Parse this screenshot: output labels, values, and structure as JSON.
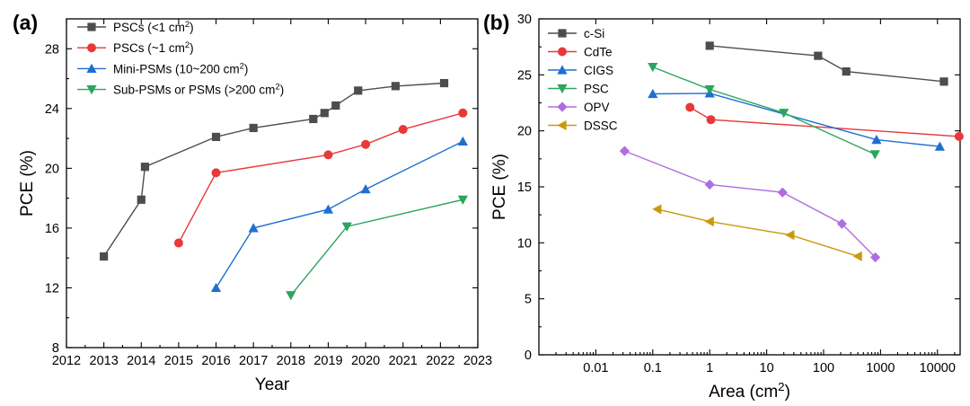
{
  "chart_data": [
    {
      "panel_label": "(a)",
      "type": "line",
      "xlabel": "Year",
      "ylabel": "PCE (%)",
      "xlim": [
        2012,
        2023
      ],
      "ylim": [
        8,
        30
      ],
      "x_ticks": [
        2012,
        2013,
        2014,
        2015,
        2016,
        2017,
        2018,
        2019,
        2020,
        2021,
        2022,
        2023
      ],
      "y_ticks": [
        8,
        12,
        16,
        20,
        24,
        28
      ],
      "legend_position": "top-left",
      "series": [
        {
          "name": "PSCs (<1 cm²)",
          "color": "#4d4d4d",
          "marker": "square",
          "points": [
            [
              2013,
              14.1
            ],
            [
              2014,
              17.9
            ],
            [
              2014.1,
              20.1
            ],
            [
              2016,
              22.1
            ],
            [
              2017,
              22.7
            ],
            [
              2018.6,
              23.3
            ],
            [
              2018.9,
              23.7
            ],
            [
              2019.2,
              24.2
            ],
            [
              2019.8,
              25.2
            ],
            [
              2020.8,
              25.5
            ],
            [
              2022.1,
              25.7
            ]
          ]
        },
        {
          "name": "PSCs (~1 cm²)",
          "color": "#e8393a",
          "marker": "circle",
          "points": [
            [
              2015,
              15.0
            ],
            [
              2016,
              19.7
            ],
            [
              2019,
              20.9
            ],
            [
              2020,
              21.6
            ],
            [
              2021,
              22.6
            ],
            [
              2022.6,
              23.7
            ]
          ]
        },
        {
          "name": "Mini-PSMs (10~200 cm²)",
          "color": "#1f6fd1",
          "marker": "triangle-up",
          "points": [
            [
              2016,
              12.0
            ],
            [
              2017,
              16.0
            ],
            [
              2019,
              17.25
            ],
            [
              2020,
              18.6
            ],
            [
              2022.6,
              21.8
            ]
          ]
        },
        {
          "name": "Sub-PSMs or PSMs (>200 cm²)",
          "color": "#2ca55d",
          "marker": "triangle-down",
          "points": [
            [
              2018,
              11.5
            ],
            [
              2019.5,
              16.1
            ],
            [
              2022.6,
              17.9
            ]
          ]
        }
      ]
    },
    {
      "panel_label": "(b)",
      "type": "line",
      "xlabel": "Area (cm²)",
      "ylabel": "PCE (%)",
      "xscale": "log",
      "xlim": [
        0.001,
        25000
      ],
      "ylim": [
        0,
        30
      ],
      "x_ticks": [
        0.01,
        0.1,
        1,
        10,
        100,
        1000,
        10000
      ],
      "x_tick_labels": [
        "0.01",
        "0.1",
        "1",
        "10",
        "100",
        "1000",
        "10000"
      ],
      "y_ticks": [
        0,
        5,
        10,
        15,
        20,
        25,
        30
      ],
      "legend_position": "top-left",
      "series": [
        {
          "name": "c-Si",
          "color": "#4d4d4d",
          "marker": "square",
          "points": [
            [
              1,
              27.6
            ],
            [
              80,
              26.7
            ],
            [
              250,
              25.3
            ],
            [
              13000,
              24.4
            ]
          ]
        },
        {
          "name": "CdTe",
          "color": "#e8393a",
          "marker": "circle",
          "points": [
            [
              0.45,
              22.1
            ],
            [
              1.05,
              21.0
            ],
            [
              24000,
              19.5
            ]
          ]
        },
        {
          "name": "CIGS",
          "color": "#1f6fd1",
          "marker": "triangle-up",
          "points": [
            [
              0.1,
              23.3
            ],
            [
              1.0,
              23.35
            ],
            [
              850,
              19.2
            ],
            [
              11000,
              18.6
            ]
          ]
        },
        {
          "name": "PSC",
          "color": "#2ca55d",
          "marker": "triangle-down",
          "points": [
            [
              0.1,
              25.7
            ],
            [
              1.0,
              23.7
            ],
            [
              20,
              21.6
            ],
            [
              800,
              17.9
            ]
          ]
        },
        {
          "name": "OPV",
          "color": "#b06ddf",
          "marker": "diamond",
          "points": [
            [
              0.032,
              18.2
            ],
            [
              1.0,
              15.2
            ],
            [
              19,
              14.5
            ],
            [
              210,
              11.7
            ],
            [
              810,
              8.7
            ]
          ]
        },
        {
          "name": "DSSC",
          "color": "#c99a0e",
          "marker": "triangle-left",
          "points": [
            [
              0.12,
              13.0
            ],
            [
              1.0,
              11.9
            ],
            [
              26,
              10.7
            ],
            [
              400,
              8.8
            ]
          ]
        }
      ]
    }
  ]
}
